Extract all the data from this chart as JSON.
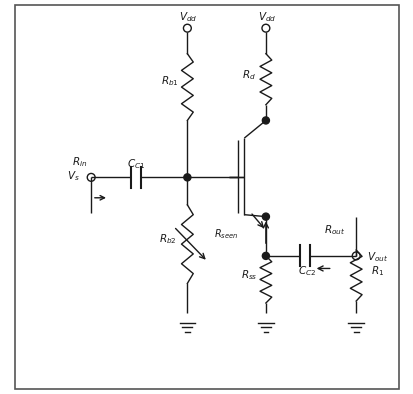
{
  "bg_color": "#ffffff",
  "border_color": "#888888",
  "line_color": "#1a1a1a",
  "fig_width": 4.14,
  "fig_height": 3.94,
  "dpi": 100,
  "xL": 4.5,
  "xM": 6.5,
  "xR": 8.8,
  "yTop": 9.3,
  "yBase": 5.5,
  "yGnd": 0.5
}
